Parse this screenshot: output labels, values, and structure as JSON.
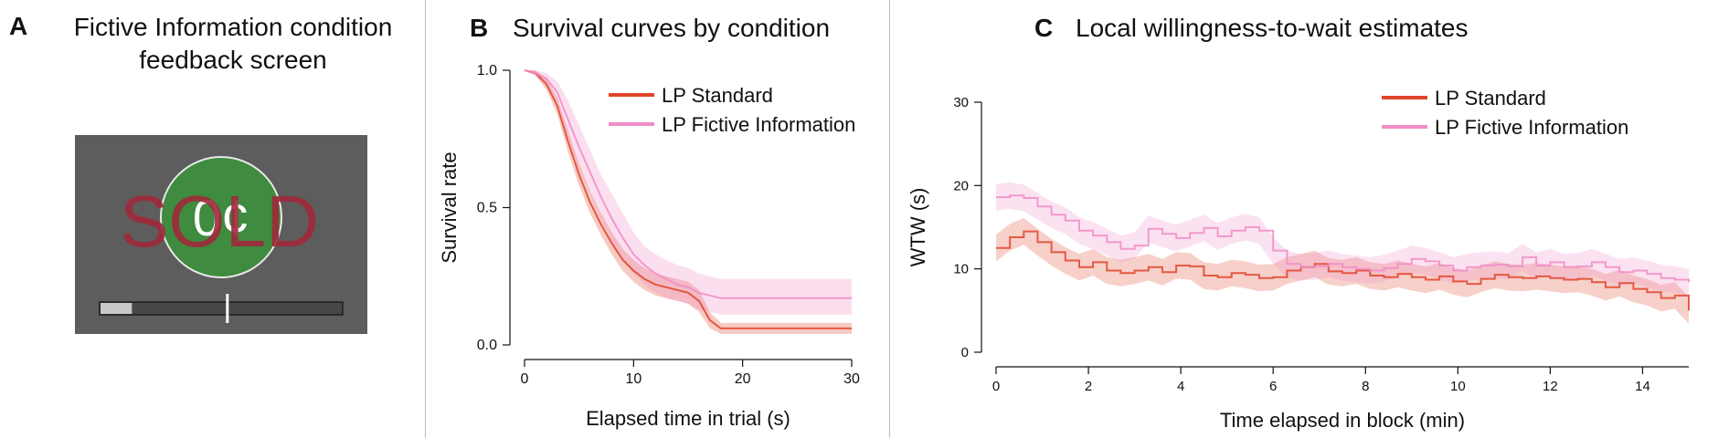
{
  "panels": {
    "a": {
      "label": "A",
      "title_line1": "Fictive Information condition",
      "title_line2": "feedback screen",
      "screen": {
        "sold_text": "SOLD",
        "coin_text": "0¢",
        "progress": 0.13,
        "marker": 0.52,
        "colors": {
          "screen_bg": "#5d5d5d",
          "coin": "#3f8b3f",
          "sold": "#a0283a"
        }
      }
    },
    "b": {
      "label": "B",
      "title": "Survival curves by condition"
    },
    "c": {
      "label": "C",
      "title": "Local willingness-to-wait estimates"
    }
  },
  "chart_data": [
    {
      "type": "line",
      "title": "Survival curves by condition",
      "xlabel": "Elapsed time in trial (s)",
      "ylabel": "Survival rate",
      "xlim": [
        0,
        30
      ],
      "ylim": [
        0,
        1
      ],
      "xticks": [
        0,
        10,
        20,
        30
      ],
      "yticks": [
        "0.0",
        "0.5",
        "1.0"
      ],
      "grid": false,
      "legend": "top-right",
      "series": [
        {
          "name": "LP Standard",
          "color": "#e0442a",
          "x": [
            0,
            1,
            2,
            3,
            4,
            5,
            6,
            7,
            8,
            9,
            10,
            11,
            12,
            13,
            14,
            15,
            16,
            17,
            18,
            19,
            20,
            25,
            30
          ],
          "y": [
            1.0,
            0.99,
            0.95,
            0.87,
            0.74,
            0.62,
            0.52,
            0.44,
            0.37,
            0.31,
            0.27,
            0.24,
            0.22,
            0.21,
            0.2,
            0.19,
            0.16,
            0.09,
            0.06,
            0.06,
            0.06,
            0.06,
            0.06
          ],
          "lower": [
            1.0,
            0.98,
            0.93,
            0.84,
            0.7,
            0.58,
            0.48,
            0.4,
            0.33,
            0.27,
            0.23,
            0.2,
            0.18,
            0.17,
            0.16,
            0.15,
            0.12,
            0.06,
            0.04,
            0.04,
            0.04,
            0.04,
            0.04
          ],
          "upper": [
            1.0,
            1.0,
            0.97,
            0.9,
            0.78,
            0.66,
            0.56,
            0.48,
            0.41,
            0.35,
            0.31,
            0.28,
            0.26,
            0.25,
            0.24,
            0.23,
            0.2,
            0.12,
            0.08,
            0.08,
            0.08,
            0.08,
            0.08
          ]
        },
        {
          "name": "LP Fictive Information",
          "color": "#f08cc6",
          "x": [
            0,
            1,
            2,
            3,
            4,
            5,
            6,
            7,
            8,
            9,
            10,
            11,
            12,
            13,
            14,
            15,
            16,
            17,
            18,
            19,
            20,
            25,
            30
          ],
          "y": [
            1.0,
            0.99,
            0.97,
            0.92,
            0.82,
            0.72,
            0.63,
            0.54,
            0.46,
            0.39,
            0.33,
            0.29,
            0.26,
            0.24,
            0.22,
            0.21,
            0.19,
            0.18,
            0.17,
            0.17,
            0.17,
            0.17,
            0.17
          ],
          "lower": [
            1.0,
            0.98,
            0.94,
            0.87,
            0.75,
            0.64,
            0.55,
            0.46,
            0.38,
            0.31,
            0.26,
            0.22,
            0.19,
            0.17,
            0.16,
            0.15,
            0.13,
            0.12,
            0.11,
            0.11,
            0.11,
            0.11,
            0.11
          ],
          "upper": [
            1.0,
            1.0,
            0.99,
            0.96,
            0.89,
            0.8,
            0.71,
            0.62,
            0.55,
            0.48,
            0.41,
            0.36,
            0.33,
            0.31,
            0.29,
            0.28,
            0.26,
            0.25,
            0.24,
            0.24,
            0.24,
            0.24,
            0.24
          ]
        }
      ]
    },
    {
      "type": "line",
      "title": "Local willingness-to-wait estimates",
      "xlabel": "Time elapsed in block (min)",
      "ylabel": "WTW (s)",
      "xlim": [
        0,
        15
      ],
      "ylim": [
        0,
        30
      ],
      "xticks": [
        0,
        2,
        4,
        6,
        8,
        10,
        12,
        14
      ],
      "yticks": [
        0,
        10,
        20,
        30
      ],
      "grid": false,
      "legend": "top-right",
      "series": [
        {
          "name": "LP Standard",
          "color": "#e0442a",
          "x": [
            0,
            0.3,
            0.6,
            0.9,
            1.2,
            1.5,
            1.8,
            2.1,
            2.4,
            2.7,
            3,
            3.3,
            3.6,
            3.9,
            4.2,
            4.5,
            4.8,
            5.1,
            5.4,
            5.7,
            6,
            6.3,
            6.6,
            6.9,
            7.2,
            7.5,
            7.8,
            8.1,
            8.4,
            8.7,
            9,
            9.3,
            9.6,
            9.9,
            10.2,
            10.5,
            10.8,
            11.1,
            11.4,
            11.7,
            12,
            12.3,
            12.6,
            12.9,
            13.2,
            13.5,
            13.8,
            14.1,
            14.4,
            14.7,
            15
          ],
          "y": [
            12.5,
            13.8,
            14.5,
            13.2,
            12.0,
            11.0,
            10.2,
            10.8,
            9.8,
            9.5,
            9.8,
            10.2,
            9.6,
            10.4,
            10.3,
            9.2,
            9.0,
            9.5,
            9.3,
            8.9,
            9.0,
            9.8,
            10.2,
            10.6,
            9.7,
            9.5,
            9.8,
            9.2,
            9.0,
            9.4,
            9.0,
            8.7,
            9.1,
            8.5,
            8.2,
            8.8,
            9.3,
            9.0,
            8.9,
            9.1,
            8.9,
            8.7,
            8.8,
            8.4,
            7.8,
            8.3,
            7.6,
            7.2,
            6.5,
            6.8,
            5.0
          ]
        },
        {
          "name": "LP Fictive Information",
          "color": "#f08cc6",
          "x": [
            0,
            0.3,
            0.6,
            0.9,
            1.2,
            1.5,
            1.8,
            2.1,
            2.4,
            2.7,
            3,
            3.3,
            3.6,
            3.9,
            4.2,
            4.5,
            4.8,
            5.1,
            5.4,
            5.7,
            6,
            6.3,
            6.6,
            6.9,
            7.2,
            7.5,
            7.8,
            8.1,
            8.4,
            8.7,
            9,
            9.3,
            9.6,
            9.9,
            10.2,
            10.5,
            10.8,
            11.1,
            11.4,
            11.7,
            12,
            12.3,
            12.6,
            12.9,
            13.2,
            13.5,
            13.8,
            14.1,
            14.4,
            14.7,
            15
          ],
          "y": [
            18.6,
            18.8,
            18.5,
            17.5,
            16.5,
            15.8,
            14.6,
            14.0,
            13.2,
            12.4,
            12.8,
            14.8,
            14.2,
            13.7,
            14.3,
            14.9,
            13.9,
            14.6,
            15.0,
            14.6,
            12.2,
            10.6,
            10.2,
            10.3,
            10.6,
            10.2,
            10.0,
            9.8,
            10.1,
            10.6,
            11.2,
            10.9,
            10.4,
            9.8,
            10.2,
            10.4,
            10.5,
            10.3,
            11.4,
            10.4,
            10.8,
            10.2,
            10.3,
            10.8,
            10.2,
            9.6,
            9.8,
            9.4,
            8.9,
            8.7,
            8.4
          ]
        }
      ]
    }
  ]
}
